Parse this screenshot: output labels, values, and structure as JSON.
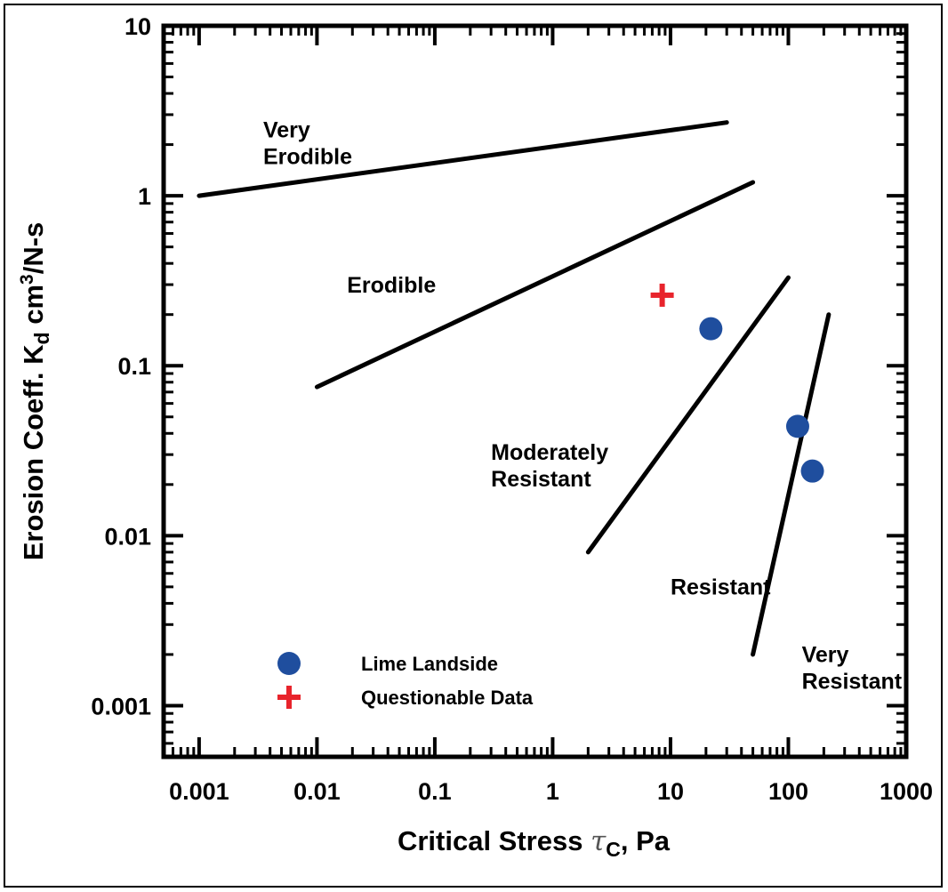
{
  "chart_data": {
    "type": "scatter",
    "x_scale": "log",
    "y_scale": "log",
    "xlim": [
      0.0005,
      1000
    ],
    "ylim": [
      0.0005,
      10
    ],
    "x_ticks": [
      {
        "value": 0.001,
        "label": "0.001"
      },
      {
        "value": 0.01,
        "label": "0.01"
      },
      {
        "value": 0.1,
        "label": "0.1"
      },
      {
        "value": 1,
        "label": "1"
      },
      {
        "value": 10,
        "label": "10"
      },
      {
        "value": 100,
        "label": "100"
      },
      {
        "value": 1000,
        "label": "1000"
      }
    ],
    "y_ticks": [
      {
        "value": 0.001,
        "label": "0.001"
      },
      {
        "value": 0.01,
        "label": "0.01"
      },
      {
        "value": 0.1,
        "label": "0.1"
      },
      {
        "value": 1,
        "label": "1"
      },
      {
        "value": 10,
        "label": "10"
      }
    ],
    "xlabel": {
      "main": "Critical Stress ",
      "symbol": "τ",
      "subscript": "C",
      "suffix": ", Pa"
    },
    "ylabel": {
      "main": "Erosion Coeff. K",
      "subscript": "d",
      "unit": " cm",
      "superscript": "3",
      "suffix": "/N-s"
    },
    "boundary_lines": [
      {
        "from": [
          0.001,
          1.0
        ],
        "to": [
          30,
          2.7
        ]
      },
      {
        "from": [
          0.01,
          0.075
        ],
        "to": [
          50,
          1.2
        ]
      },
      {
        "from": [
          2,
          0.008
        ],
        "to": [
          100,
          0.33
        ]
      },
      {
        "from": [
          50,
          0.002
        ],
        "to": [
          220,
          0.2
        ]
      }
    ],
    "region_labels": [
      {
        "lines": [
          "Very",
          "Erodible"
        ],
        "x": 0.0035,
        "y": 2.2
      },
      {
        "lines": [
          "Erodible"
        ],
        "x": 0.018,
        "y": 0.27
      },
      {
        "lines": [
          "Moderately",
          "Resistant"
        ],
        "x": 0.3,
        "y": 0.028
      },
      {
        "lines": [
          "Resistant"
        ],
        "x": 10,
        "y": 0.0045
      },
      {
        "lines": [
          "Very",
          "Resistant"
        ],
        "x": 130,
        "y": 0.0018
      }
    ],
    "series": [
      {
        "name": "Lime Landside",
        "marker": "circle",
        "color": "#1f4e9e",
        "points": [
          [
            22,
            0.165
          ],
          [
            120,
            0.044
          ],
          [
            160,
            0.024
          ]
        ]
      },
      {
        "name": "Questionable Data",
        "marker": "plus",
        "color": "#e8242c",
        "points": [
          [
            8.5,
            0.26
          ]
        ]
      }
    ],
    "legend_position": "bottom-left",
    "grid": false
  }
}
